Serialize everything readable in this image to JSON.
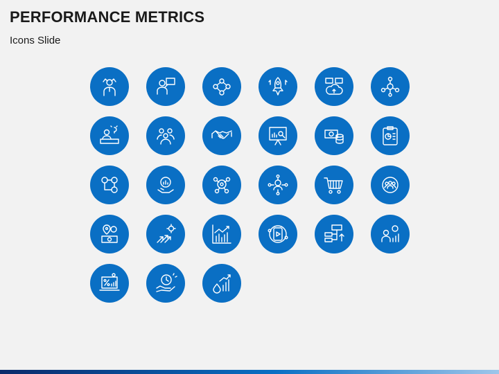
{
  "slide": {
    "title": "PERFORMANCE METRICS",
    "subtitle": "Icons Slide"
  },
  "colors": {
    "icon_background": "#0a6fc4",
    "background": "#f2f2f2",
    "title_text": "#1a1a1a"
  },
  "icons": [
    "team-leader-icon",
    "presenter-board-icon",
    "team-network-icon",
    "rocket-growth-icon",
    "cloud-devices-icon",
    "connected-people-icon",
    "idea-desk-icon",
    "team-group-icon",
    "handshake-icon",
    "presentation-analysis-icon",
    "money-coins-icon",
    "clipboard-report-icon",
    "gears-process-icon",
    "hand-growth-icon",
    "brain-gears-icon",
    "network-manager-icon",
    "shopping-cart-icon",
    "target-team-icon",
    "location-money-icon",
    "arrows-growth-icon",
    "bar-chart-icon",
    "mobile-video-icon",
    "server-flow-icon",
    "analyst-chart-icon",
    "laptop-percentage-icon",
    "hand-clock-icon",
    "water-growth-icon"
  ]
}
